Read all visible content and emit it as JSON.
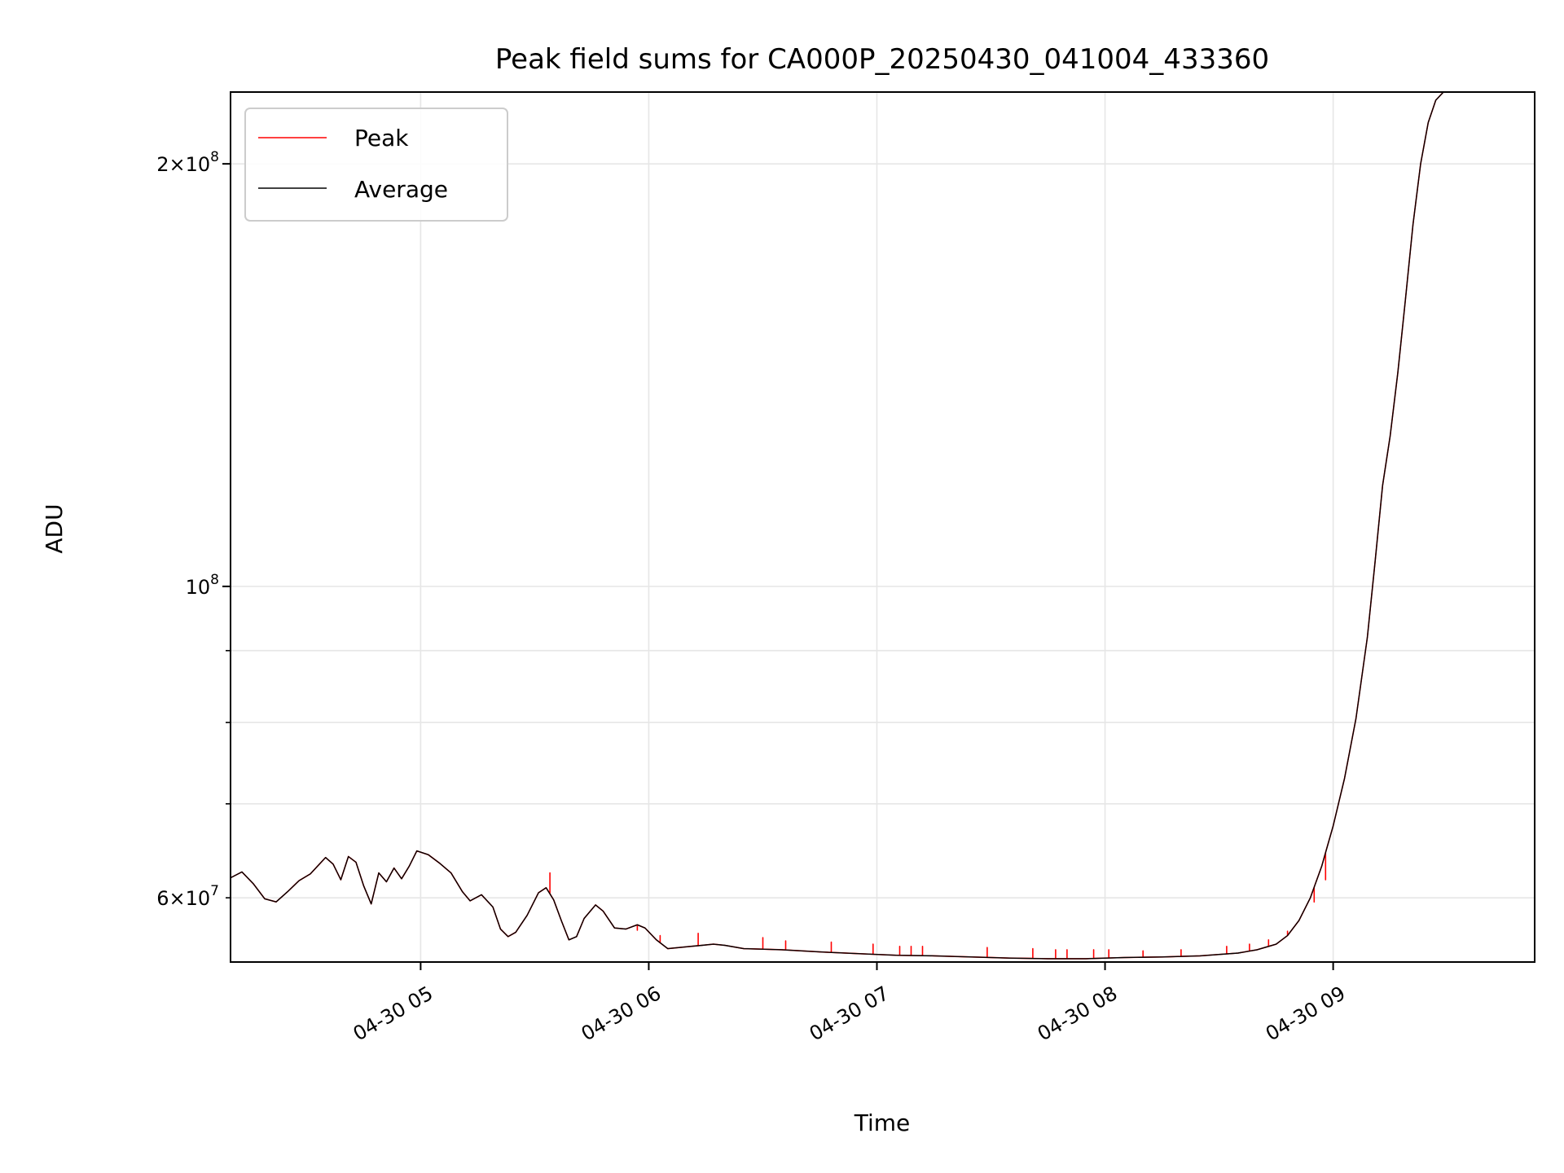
{
  "chart_data": {
    "type": "line",
    "title": "Peak field sums for CA000P_20250430_041004_433360",
    "xlabel": "Time",
    "ylabel": "ADU",
    "y_scale": "log",
    "xlim": [
      "2025-04-30 04:10",
      "2025-04-30 09:53"
    ],
    "ylim": [
      54000000,
      225000000
    ],
    "x_ticks": [
      "04-30 05",
      "04-30 06",
      "04-30 07",
      "04-30 08",
      "04-30 09"
    ],
    "y_major_ticks": [
      {
        "value": 100000000,
        "mant": "",
        "exp": "8"
      },
      {
        "value": 200000000,
        "mant": "2",
        "exp": "8"
      }
    ],
    "y_minor_ticks": [
      60000000,
      70000000,
      80000000,
      90000000
    ],
    "grid": true,
    "legend": {
      "position": "top-left",
      "entries": [
        "Peak",
        "Average"
      ]
    },
    "series": [
      {
        "name": "Average",
        "color": "#000000",
        "points": [
          [
            "04:10",
            62.0
          ],
          [
            "04:13",
            62.6
          ],
          [
            "04:16",
            61.4
          ],
          [
            "04:19",
            59.9
          ],
          [
            "04:22",
            59.6
          ],
          [
            "04:25",
            60.6
          ],
          [
            "04:28",
            61.7
          ],
          [
            "04:31",
            62.4
          ],
          [
            "04:35",
            64.1
          ],
          [
            "04:37",
            63.4
          ],
          [
            "04:39",
            61.8
          ],
          [
            "04:41",
            64.2
          ],
          [
            "04:43",
            63.6
          ],
          [
            "04:45",
            61.2
          ],
          [
            "04:47",
            59.4
          ],
          [
            "04:49",
            62.5
          ],
          [
            "04:51",
            61.6
          ],
          [
            "04:53",
            63.0
          ],
          [
            "04:55",
            61.9
          ],
          [
            "04:57",
            63.2
          ],
          [
            "04:59",
            64.8
          ],
          [
            "05:02",
            64.4
          ],
          [
            "05:05",
            63.5
          ],
          [
            "05:08",
            62.5
          ],
          [
            "05:11",
            60.6
          ],
          [
            "05:13",
            59.7
          ],
          [
            "05:16",
            60.3
          ],
          [
            "05:19",
            59.1
          ],
          [
            "05:21",
            57.0
          ],
          [
            "05:23",
            56.3
          ],
          [
            "05:25",
            56.7
          ],
          [
            "05:28",
            58.3
          ],
          [
            "05:31",
            60.5
          ],
          [
            "05:33",
            61.0
          ],
          [
            "05:35",
            59.8
          ],
          [
            "05:37",
            57.8
          ],
          [
            "05:39",
            56.0
          ],
          [
            "05:41",
            56.3
          ],
          [
            "05:43",
            58.0
          ],
          [
            "05:46",
            59.3
          ],
          [
            "05:48",
            58.7
          ],
          [
            "05:51",
            57.1
          ],
          [
            "05:54",
            57.0
          ],
          [
            "05:57",
            57.4
          ],
          [
            "05:59",
            57.1
          ],
          [
            "06:02",
            56.0
          ],
          [
            "06:05",
            55.2
          ],
          [
            "06:08",
            55.3
          ],
          [
            "06:11",
            55.4
          ],
          [
            "06:14",
            55.5
          ],
          [
            "06:17",
            55.6
          ],
          [
            "06:20",
            55.5
          ],
          [
            "06:25",
            55.2
          ],
          [
            "06:35",
            55.1
          ],
          [
            "06:45",
            54.9
          ],
          [
            "06:55",
            54.75
          ],
          [
            "07:05",
            54.6
          ],
          [
            "07:15",
            54.55
          ],
          [
            "07:25",
            54.45
          ],
          [
            "07:35",
            54.35
          ],
          [
            "07:45",
            54.3
          ],
          [
            "07:55",
            54.3
          ],
          [
            "08:05",
            54.4
          ],
          [
            "08:15",
            54.45
          ],
          [
            "08:25",
            54.55
          ],
          [
            "08:35",
            54.8
          ],
          [
            "08:40",
            55.1
          ],
          [
            "08:45",
            55.6
          ],
          [
            "08:48",
            56.4
          ],
          [
            "08:51",
            57.8
          ],
          [
            "08:54",
            60.0
          ],
          [
            "08:57",
            63.2
          ],
          [
            "09:00",
            67.5
          ],
          [
            "09:03",
            73.0
          ],
          [
            "09:06",
            80.5
          ],
          [
            "09:09",
            92.0
          ],
          [
            "09:11",
            104.0
          ],
          [
            "09:13",
            118.0
          ],
          [
            "09:15",
            128.0
          ],
          [
            "09:17",
            142.0
          ],
          [
            "09:19",
            160.0
          ],
          [
            "09:21",
            181.0
          ],
          [
            "09:23",
            200.0
          ],
          [
            "09:25",
            214.0
          ],
          [
            "09:27",
            222.0
          ],
          [
            "09:29",
            225.0
          ]
        ]
      },
      {
        "name": "Peak",
        "color": "#ff0000",
        "spikes": [
          [
            "05:34",
            62.5
          ],
          [
            "05:57",
            56.9
          ],
          [
            "06:03",
            56.4
          ],
          [
            "06:13",
            56.6
          ],
          [
            "06:30",
            56.2
          ],
          [
            "06:36",
            55.9
          ],
          [
            "06:48",
            55.8
          ],
          [
            "06:59",
            55.6
          ],
          [
            "07:06",
            55.4
          ],
          [
            "07:09",
            55.4
          ],
          [
            "07:12",
            55.4
          ],
          [
            "07:29",
            55.3
          ],
          [
            "07:41",
            55.2
          ],
          [
            "07:47",
            55.1
          ],
          [
            "07:50",
            55.1
          ],
          [
            "07:57",
            55.1
          ],
          [
            "08:01",
            55.1
          ],
          [
            "08:10",
            55.0
          ],
          [
            "08:20",
            55.1
          ],
          [
            "08:32",
            55.4
          ],
          [
            "08:38",
            55.6
          ],
          [
            "08:43",
            56.0
          ],
          [
            "08:48",
            56.8
          ],
          [
            "08:55",
            59.6
          ],
          [
            "08:58",
            61.8
          ]
        ]
      }
    ]
  }
}
